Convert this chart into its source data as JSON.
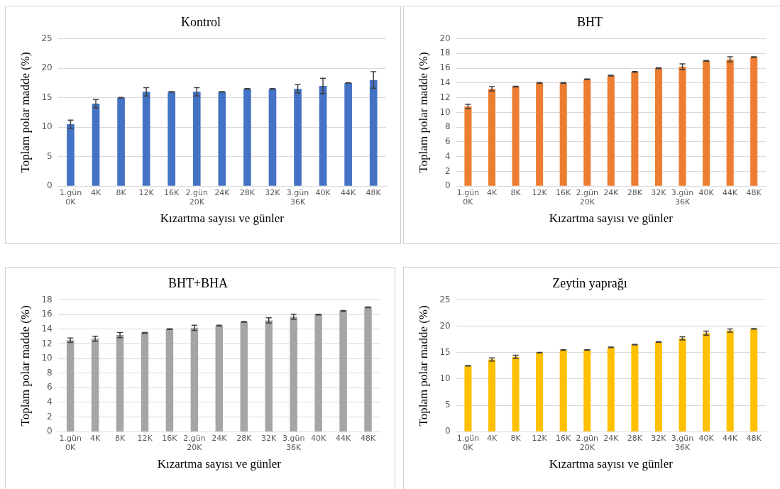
{
  "chart_data": [
    {
      "type": "bar",
      "title": "Kontrol",
      "xlabel": "Kızartma sayısı ve günler",
      "ylabel": "Toplam polar madde (%)",
      "categories": [
        "1.gün\n0K",
        "4K",
        "8K",
        "12K",
        "16K",
        "2.gün\n20K",
        "24K",
        "28K",
        "32K",
        "3.gün\n36K",
        "40K",
        "44K",
        "48K"
      ],
      "values": [
        10.5,
        14,
        15,
        16,
        16,
        16,
        16,
        16.5,
        16.5,
        16.5,
        17,
        17.5,
        18
      ],
      "errors": [
        0.7,
        0.7,
        0.05,
        0.7,
        0.05,
        0.7,
        0.05,
        0.05,
        0.05,
        0.7,
        1.3,
        0.05,
        1.4
      ],
      "color": "#4472c4",
      "ylim": [
        0,
        25
      ],
      "yticks": [
        0,
        5,
        10,
        15,
        20,
        25
      ],
      "grid": "y"
    },
    {
      "type": "bar",
      "title": "BHT",
      "xlabel": "Kızartma sayısı ve günler",
      "ylabel": "Toplam polar madde (%)",
      "categories": [
        "1.gün\n0K",
        "4K",
        "8K",
        "12K",
        "16K",
        "2.gün\n20K",
        "24K",
        "28K",
        "32K",
        "3.gün\n36K",
        "40K",
        "44K",
        "48K"
      ],
      "values": [
        10.8,
        13.2,
        13.5,
        14,
        14,
        14.5,
        15,
        15.5,
        16,
        16.2,
        17,
        17.2,
        17.5
      ],
      "errors": [
        0.3,
        0.3,
        0.05,
        0.05,
        0.05,
        0.05,
        0.05,
        0.05,
        0.05,
        0.4,
        0.05,
        0.35,
        0.05
      ],
      "color": "#ed7d31",
      "ylim": [
        0,
        20
      ],
      "yticks": [
        0,
        2,
        4,
        6,
        8,
        10,
        12,
        14,
        16,
        18,
        20
      ],
      "grid": "y"
    },
    {
      "type": "bar",
      "title": "BHT+BHA",
      "xlabel": "Kızartma sayısı ve günler",
      "ylabel": "Toplam polar madde (%)",
      "categories": [
        "1.gün\n0K",
        "4K",
        "8K",
        "12K",
        "16K",
        "2.gün\n20K",
        "24K",
        "28K",
        "32K",
        "3.gün\n36K",
        "40K",
        "44K",
        "48K"
      ],
      "values": [
        12.5,
        12.7,
        13.2,
        13.5,
        14,
        14.2,
        14.5,
        15,
        15.2,
        15.7,
        16,
        16.5,
        17
      ],
      "errors": [
        0.3,
        0.35,
        0.35,
        0.05,
        0.05,
        0.35,
        0.05,
        0.05,
        0.35,
        0.35,
        0.05,
        0.05,
        0.05
      ],
      "color": "#a5a5a5",
      "ylim": [
        0,
        18
      ],
      "yticks": [
        0,
        2,
        4,
        6,
        8,
        10,
        12,
        14,
        16,
        18
      ],
      "grid": "y"
    },
    {
      "type": "bar",
      "title": "Zeytin yaprağı",
      "xlabel": "Kızartma sayısı ve günler",
      "ylabel": "Toplam polar madde (%)",
      "categories": [
        "1.gün\n0K",
        "4K",
        "8K",
        "12K",
        "16K",
        "2.gün\n20K",
        "24K",
        "28K",
        "32K",
        "3.gün\n36K",
        "40K",
        "44K",
        "48K"
      ],
      "values": [
        12.5,
        13.7,
        14.2,
        15,
        15.5,
        15.5,
        16,
        16.5,
        17,
        17.7,
        18.7,
        19.2,
        19.5
      ],
      "errors": [
        0.05,
        0.3,
        0.3,
        0.05,
        0.05,
        0.05,
        0.05,
        0.05,
        0.05,
        0.3,
        0.4,
        0.3,
        0.05
      ],
      "color": "#ffc000",
      "ylim": [
        0,
        25
      ],
      "yticks": [
        0,
        5,
        10,
        15,
        20,
        25
      ],
      "grid": "y"
    }
  ]
}
